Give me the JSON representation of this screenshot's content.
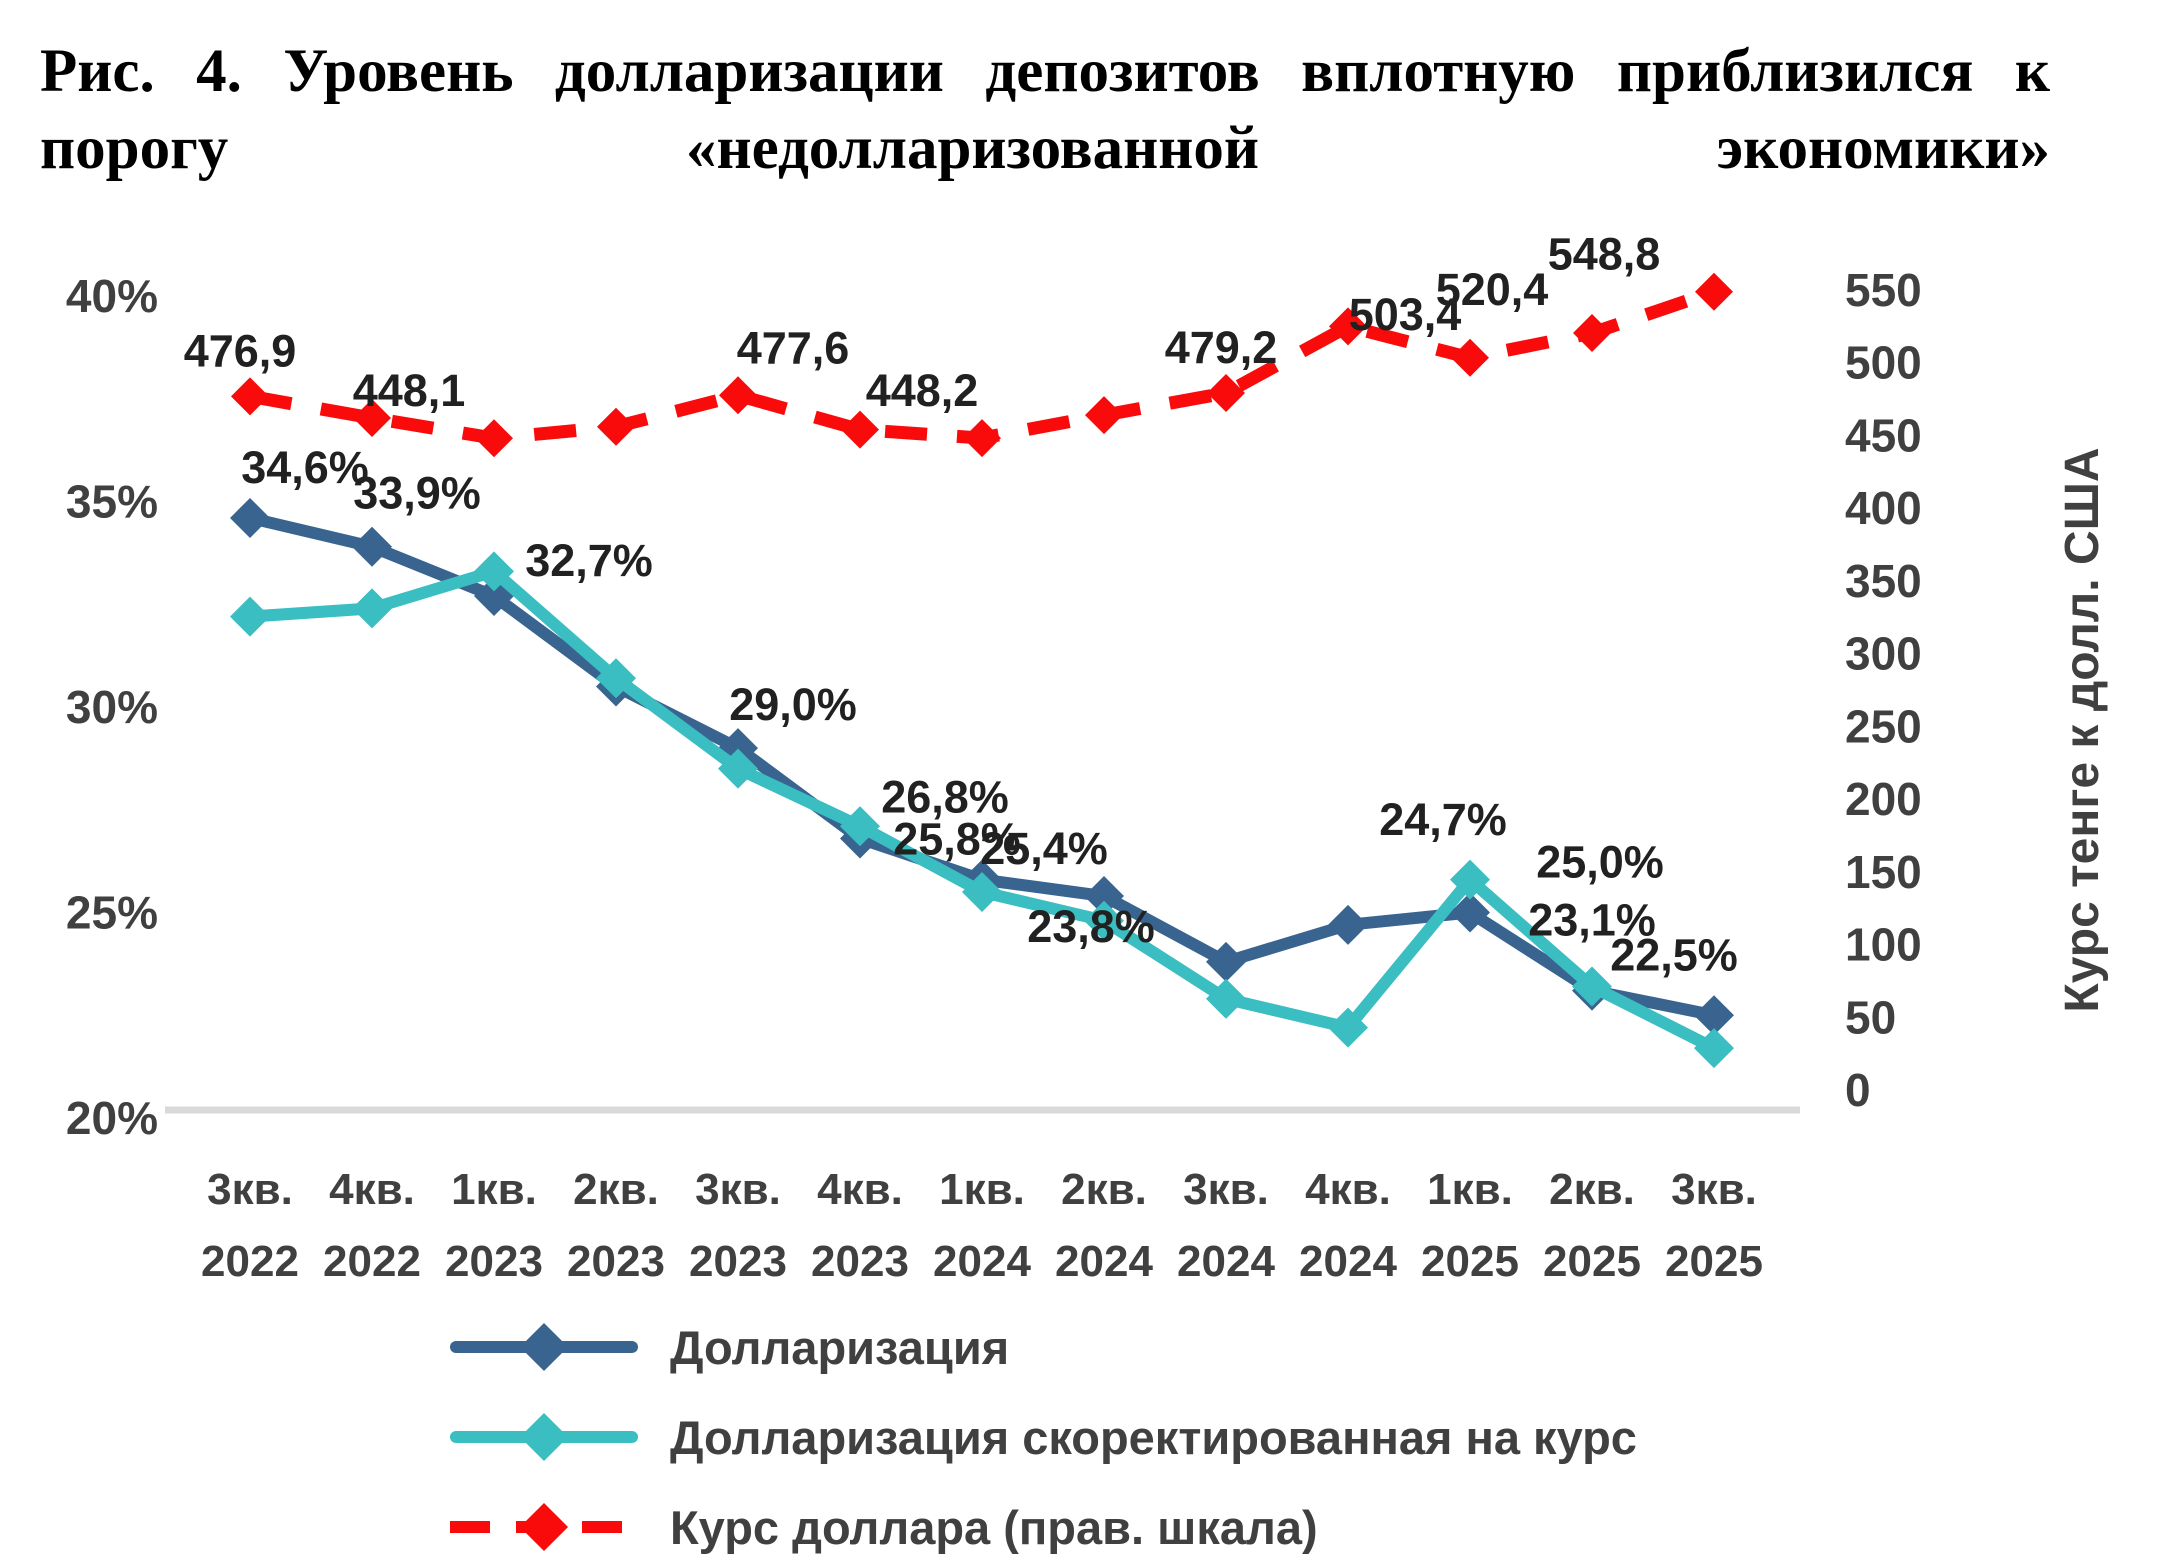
{
  "title": "Рис. 4. Уровень долларизации депозитов вплотную приблизился к порогу «недолларизованной экономики»",
  "colors": {
    "dollarization": "#38648F",
    "dollarization_adjusted": "#3ABEC1",
    "usd_rate": "#F90B0B",
    "baseline": "#D9D9D9",
    "axis_text": "#404040",
    "data_label_text": "#212121"
  },
  "chart_data": {
    "type": "line",
    "categories_quarter": [
      "3кв.",
      "4кв.",
      "1кв.",
      "2кв.",
      "3кв.",
      "4кв.",
      "1кв.",
      "2кв.",
      "3кв.",
      "4кв.",
      "1кв.",
      "2кв.",
      "3кв."
    ],
    "categories_year": [
      "2022",
      "2022",
      "2023",
      "2023",
      "2023",
      "2023",
      "2024",
      "2024",
      "2024",
      "2024",
      "2025",
      "2025",
      "2025"
    ],
    "series": [
      {
        "name": "Долларизация",
        "axis": "left",
        "color": "#38648F",
        "dash": null,
        "values": [
          34.6,
          33.9,
          32.7,
          30.5,
          29.0,
          26.8,
          25.8,
          25.4,
          23.8,
          24.7,
          25.0,
          23.1,
          22.5
        ],
        "labels": [
          "34,6%",
          "33,9%",
          "32,7%",
          null,
          "29,0%",
          "26,8%",
          "25,8%",
          "25,4%",
          "23,8%",
          "24,7%",
          "25,0%",
          "23,1%",
          "22,5%"
        ],
        "label_offsets": [
          [
            55,
            -35
          ],
          [
            45,
            -38
          ],
          [
            95,
            -20
          ],
          null,
          [
            55,
            -28
          ],
          [
            85,
            -26
          ],
          [
            -25,
            -25
          ],
          [
            -60,
            -32
          ],
          [
            -135,
            -20
          ],
          [
            95,
            -90
          ],
          [
            130,
            -35
          ],
          [
            0,
            -55
          ],
          [
            -40,
            -45
          ]
        ]
      },
      {
        "name": "Долларизация скоректированная на курс",
        "axis": "left",
        "color": "#3ABEC1",
        "dash": null,
        "values": [
          32.2,
          32.4,
          33.3,
          30.7,
          28.5,
          27.1,
          25.5,
          24.8,
          22.9,
          22.2,
          25.8,
          23.2,
          21.7
        ],
        "labels": null,
        "label_offsets": null
      },
      {
        "name": "Курс доллара (прав. шкала)",
        "axis": "right",
        "color": "#F90B0B",
        "dash": [
          42,
          30
        ],
        "values": [
          476.9,
          462,
          448.1,
          456,
          477.6,
          454,
          448.2,
          464,
          479.2,
          525,
          503.4,
          520.4,
          548.8
        ],
        "labels": [
          "476,9",
          null,
          "448,1",
          null,
          "477,6",
          null,
          "448,2",
          null,
          "479,2",
          null,
          "503,4",
          "520,4",
          "548,8"
        ],
        "label_offsets": [
          [
            -10,
            -30
          ],
          null,
          [
            -85,
            -32
          ],
          null,
          [
            55,
            -32
          ],
          null,
          [
            -60,
            -32
          ],
          null,
          [
            -5,
            -30
          ],
          null,
          [
            -65,
            -28
          ],
          [
            -100,
            -28
          ],
          [
            -110,
            -22
          ]
        ]
      }
    ],
    "left_axis": {
      "min": 20,
      "max": 40,
      "tick_values": [
        40,
        35,
        30,
        25,
        20
      ],
      "tick_labels": [
        "40%",
        "35%",
        "30%",
        "25%",
        "20%"
      ]
    },
    "right_axis": {
      "min": 0,
      "max": 550,
      "tick_step": 50,
      "tick_labels": [
        "550",
        "500",
        "450",
        "400",
        "350",
        "300",
        "250",
        "200",
        "150",
        "100",
        "50",
        "0"
      ],
      "title": "Курс тенге к долл. США"
    },
    "grid": "x-baseline-only",
    "legend_position": "bottom-left"
  }
}
